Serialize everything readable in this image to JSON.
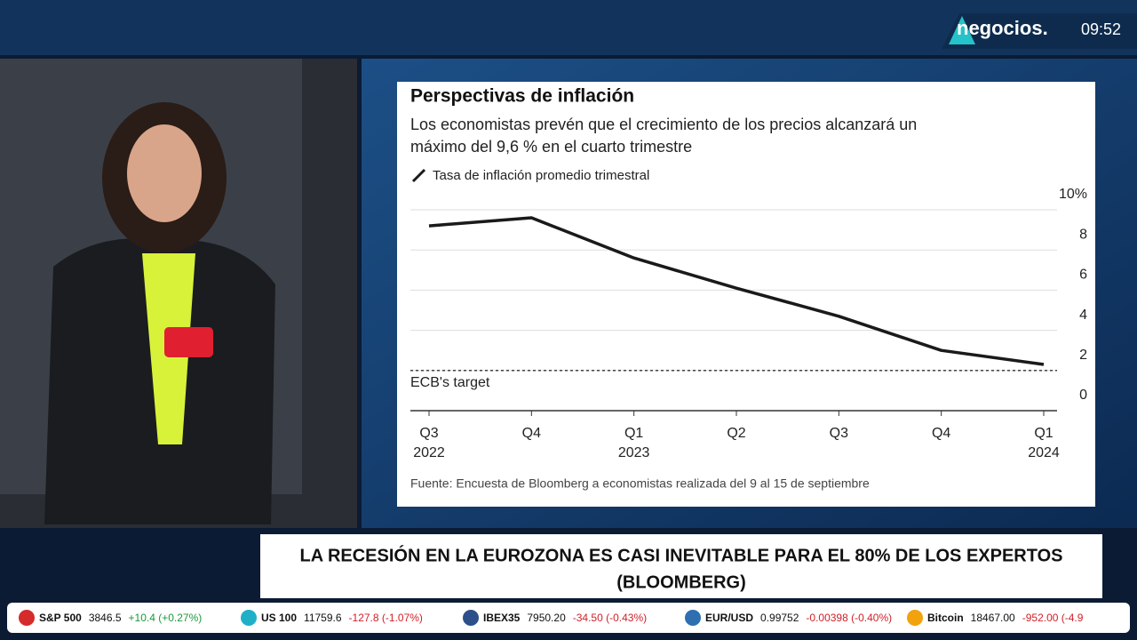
{
  "broadcast": {
    "logo": "negocios.",
    "time": "09:52",
    "headline": [
      "LA RECESIÓN EN LA EUROZONA ES CASI INEVITABLE PARA EL 80% DE LOS EXPERTOS",
      "(BLOOMBERG)"
    ],
    "ticker": [
      {
        "name": "S&P 500",
        "price": "3846.5",
        "change": "+10.4 (+0.27%)"
      },
      {
        "name": "US 100",
        "price": "11759.6",
        "change": "-127.8 (-1.07%)"
      },
      {
        "name": "IBEX35",
        "price": "7950.20",
        "change": "-34.50 (-0.43%)"
      },
      {
        "name": "EUR/USD",
        "price": "0.99752",
        "change": "-0.00398 (-0.40%)"
      },
      {
        "name": "Bitcoin",
        "price": "18467.00",
        "change": "-952.00 (-4.9"
      }
    ]
  },
  "chart_data": {
    "type": "line",
    "title": "Perspectivas de inflación",
    "subtitle": [
      "Los economistas prevén que el crecimiento de los precios alcanzará un",
      "máximo del 9,6 % en el cuarto trimestre"
    ],
    "categories": [
      "Q3 2022",
      "Q4",
      "Q1 2023",
      "Q2",
      "Q3",
      "Q4",
      "Q1 2024"
    ],
    "series": [
      {
        "name": "Tasa de inflación promedio trimestral",
        "color": "#1a1a1a",
        "values": [
          9.2,
          9.6,
          7.6,
          6.1,
          4.7,
          3.0,
          2.3
        ]
      }
    ],
    "target": {
      "label": "ECB's target",
      "value": 2
    },
    "ylim": [
      0,
      10
    ],
    "yticks": [
      0,
      2,
      4,
      6,
      8,
      {
        "value": 10,
        "label": "10%"
      }
    ],
    "grid": true,
    "source": "Fuente: Encuesta de Bloomberg a economistas realizada del 9 al 15 de septiembre"
  }
}
